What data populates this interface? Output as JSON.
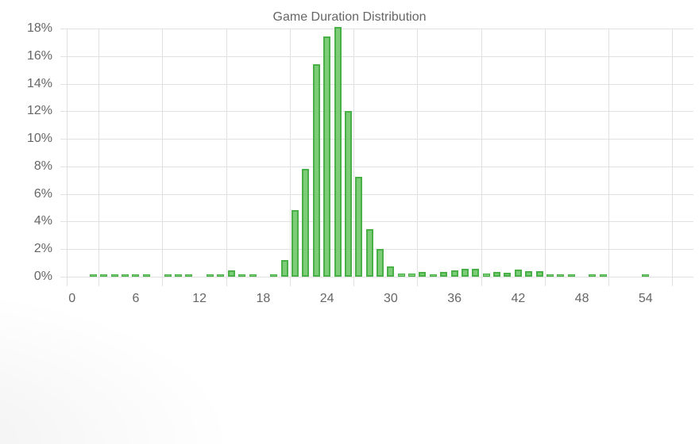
{
  "chart_data": {
    "type": "bar",
    "title": "Game Duration Distribution",
    "xlabel": "",
    "ylabel": "",
    "ylim": [
      0,
      18
    ],
    "y_ticks": [
      "0%",
      "2%",
      "4%",
      "6%",
      "8%",
      "10%",
      "12%",
      "14%",
      "16%",
      "18%"
    ],
    "x_tick_labels": [
      "0",
      "6",
      "12",
      "18",
      "24",
      "30",
      "36",
      "42",
      "48",
      "54"
    ],
    "grid": true,
    "legend": "none",
    "colors": {
      "bar_fill": "#66c460",
      "bar_border": "#48b046",
      "grid": "#e1e1e1",
      "text": "#666666"
    },
    "categories": [
      0,
      1,
      2,
      3,
      4,
      5,
      6,
      7,
      8,
      9,
      10,
      11,
      12,
      13,
      14,
      15,
      16,
      17,
      18,
      19,
      20,
      21,
      22,
      23,
      24,
      25,
      26,
      27,
      28,
      29,
      30,
      31,
      32,
      33,
      34,
      35,
      36,
      37,
      38,
      39,
      40,
      41,
      42,
      43,
      44,
      45,
      46,
      47,
      48,
      49,
      50,
      51,
      52,
      53,
      54,
      55,
      56,
      57,
      58
    ],
    "values": [
      0,
      0,
      0.1,
      0.1,
      0.1,
      0.05,
      0.05,
      0.05,
      0,
      0.05,
      0.05,
      0.05,
      0,
      0.15,
      0.15,
      0.45,
      0.05,
      0.05,
      0,
      0.2,
      1.2,
      4.85,
      7.8,
      15.4,
      17.4,
      18.1,
      12.0,
      7.25,
      3.45,
      2.0,
      0.75,
      0.22,
      0.22,
      0.35,
      0.05,
      0.35,
      0.45,
      0.55,
      0.58,
      0.22,
      0.35,
      0.3,
      0.5,
      0.42,
      0.42,
      0.18,
      0.2,
      0.05,
      0,
      0.15,
      0.05,
      0,
      0,
      0,
      0.05,
      0,
      0,
      0,
      0
    ]
  }
}
